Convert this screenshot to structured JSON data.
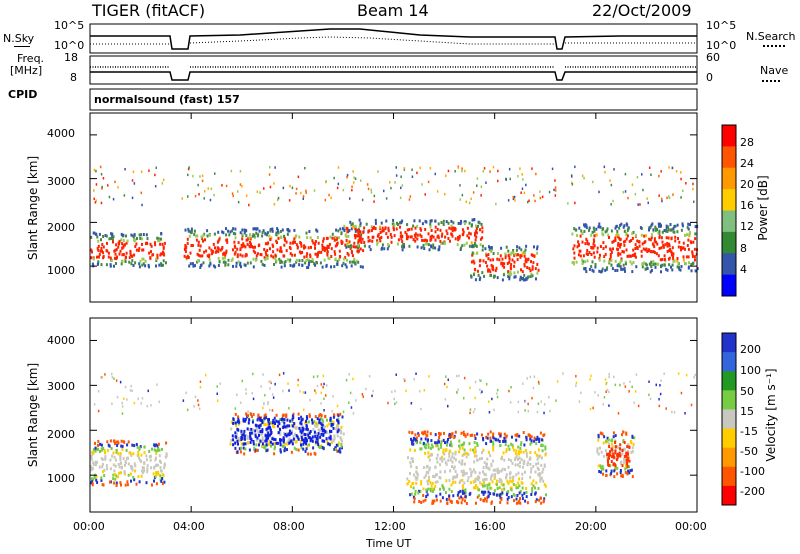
{
  "header": {
    "radar": "TIGER (fitACF)",
    "beam": "Beam 14",
    "date": "22/Oct/2009"
  },
  "strip_panel": {
    "nsky_label": "N.Sky",
    "nsky_ticks": [
      "10^5",
      "10^0"
    ],
    "nsearch_label": "N.Search",
    "nsearch_ticks": [
      "10^5",
      "10^0"
    ],
    "freq_label": "Freq.",
    "freq_unit": "[MHz]",
    "freq_ticks": [
      "18",
      "8"
    ],
    "nave_label": "Nave",
    "nave_ticks": [
      "60",
      "0"
    ],
    "cpid_label": "CPID",
    "cpid_value": "normalsound (fast) 157"
  },
  "chart_data": [
    {
      "type": "heatmap",
      "panel": "power",
      "ylabel": "Slant Range [km]",
      "ylim": [
        180,
        4500
      ],
      "yticks": [
        "4000",
        "3000",
        "2000",
        "1000"
      ],
      "xlabel": "Time UT",
      "xticks": [
        "00:00",
        "04:00",
        "08:00",
        "12:00",
        "16:00",
        "20:00",
        "00:00"
      ],
      "colorbar_label": "Power [dB]",
      "colorbar_ticks": [
        "28",
        "24",
        "20",
        "16",
        "12",
        "8",
        "4"
      ],
      "colorbar_colors": [
        "#ff0000",
        "#ff5500",
        "#ff9900",
        "#ffcc00",
        "#7fbf7f",
        "#338833",
        "#3355aa",
        "#0000ff"
      ],
      "data_gaps_hours": [
        [
          3.1,
          3.6
        ],
        [
          18.55,
          18.65
        ]
      ],
      "echo_bands": [
        {
          "start_h": 0.0,
          "end_h": 3.0,
          "range_km": [
            1000,
            1800
          ],
          "power_db": 28
        },
        {
          "start_h": 3.7,
          "end_h": 10.8,
          "range_km": [
            1000,
            1900
          ],
          "power_db": 28
        },
        {
          "start_h": 10.0,
          "end_h": 15.5,
          "range_km": [
            1400,
            2100
          ],
          "power_db": 24
        },
        {
          "start_h": 15.0,
          "end_h": 17.7,
          "range_km": [
            700,
            1500
          ],
          "power_db": 20
        },
        {
          "start_h": 19.0,
          "end_h": 24.0,
          "range_km": [
            900,
            2000
          ],
          "power_db": 24
        }
      ]
    },
    {
      "type": "heatmap",
      "panel": "velocity",
      "ylabel": "Slant Range [km]",
      "ylim": [
        180,
        4500
      ],
      "yticks": [
        "4000",
        "3000",
        "2000",
        "1000"
      ],
      "xlabel": "Time UT",
      "xticks": [
        "00:00",
        "04:00",
        "08:00",
        "12:00",
        "16:00",
        "20:00",
        "00:00"
      ],
      "colorbar_label": "Velocity [m s⁻¹]",
      "colorbar_ticks": [
        "200",
        "100",
        "50",
        "15",
        "-15",
        "-50",
        "-100",
        "-200"
      ],
      "colorbar_colors": [
        "#2233cc",
        "#3366dd",
        "#229922",
        "#77cc44",
        "#c8c8bf",
        "#ffcc00",
        "#ff9900",
        "#ff5500",
        "#ff0000"
      ],
      "echo_bands": [
        {
          "start_h": 0.0,
          "end_h": 3.0,
          "range_km": [
            800,
            1800
          ],
          "velocity": "-15..15"
        },
        {
          "start_h": 5.5,
          "end_h": 10.0,
          "range_km": [
            1500,
            2400
          ],
          "velocity": "200"
        },
        {
          "start_h": 12.5,
          "end_h": 18.0,
          "range_km": [
            400,
            2000
          ],
          "velocity": "-15..15"
        },
        {
          "start_h": 20.0,
          "end_h": 21.5,
          "range_km": [
            1000,
            2000
          ],
          "velocity": "-100..-200"
        }
      ]
    }
  ]
}
